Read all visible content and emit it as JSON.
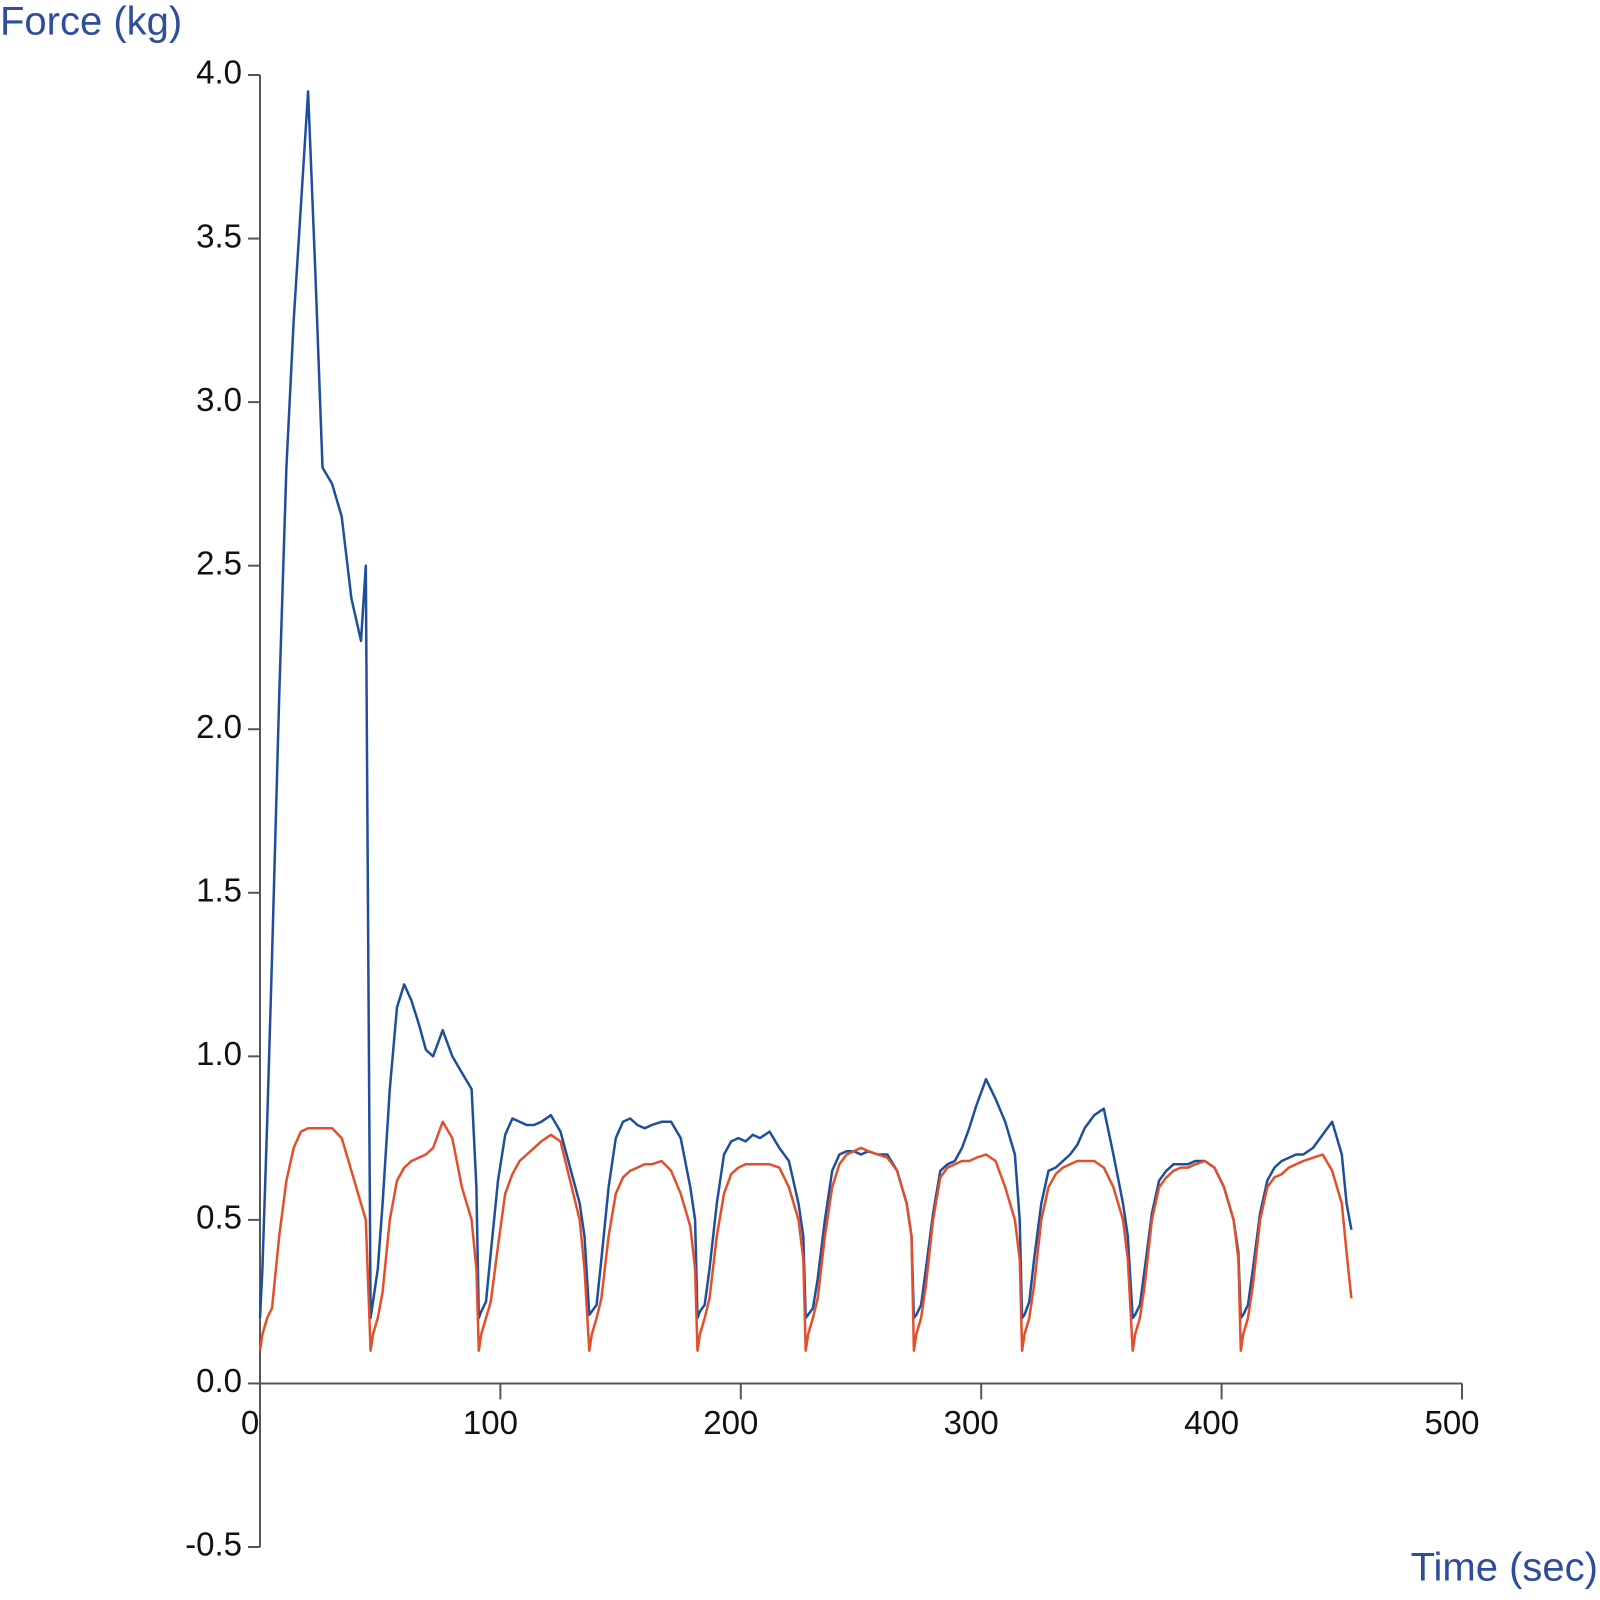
{
  "chart_data": {
    "type": "line",
    "y_label": "Force (kg)",
    "x_label": "Time (sec)",
    "x": [
      0,
      1,
      3,
      5,
      8,
      11,
      14,
      17,
      20,
      23,
      26,
      30,
      34,
      38,
      42,
      44,
      46,
      47,
      49,
      51,
      54,
      57,
      60,
      63,
      66,
      69,
      72,
      76,
      80,
      84,
      88,
      90,
      91,
      92,
      94,
      96,
      99,
      102,
      105,
      108,
      111,
      114,
      117,
      121,
      125,
      129,
      133,
      135,
      137,
      138,
      140,
      142,
      145,
      148,
      151,
      154,
      157,
      160,
      163,
      167,
      171,
      175,
      179,
      181,
      182,
      183,
      185,
      187,
      190,
      193,
      196,
      199,
      202,
      205,
      208,
      212,
      216,
      220,
      224,
      226,
      227,
      228,
      230,
      232,
      235,
      238,
      241,
      244,
      247,
      250,
      253,
      257,
      261,
      265,
      269,
      271,
      272,
      273,
      275,
      277,
      280,
      283,
      286,
      289,
      292,
      295,
      298,
      302,
      306,
      310,
      314,
      316,
      317,
      318,
      320,
      322,
      325,
      328,
      331,
      334,
      337,
      340,
      343,
      347,
      351,
      355,
      359,
      361,
      363,
      364,
      366,
      368,
      371,
      374,
      377,
      380,
      383,
      386,
      389,
      393,
      397,
      401,
      405,
      407,
      408,
      409,
      411,
      413,
      416,
      419,
      422,
      425,
      428,
      431,
      434,
      438,
      442,
      446,
      450,
      452,
      454
    ],
    "series": [
      {
        "color": "#1f4e9c",
        "values": [
          0.2,
          0.35,
          0.8,
          1.3,
          2.1,
          2.8,
          3.25,
          3.6,
          3.95,
          3.4,
          2.8,
          2.75,
          2.65,
          2.4,
          2.27,
          2.5,
          0.2,
          0.25,
          0.35,
          0.55,
          0.9,
          1.15,
          1.22,
          1.17,
          1.1,
          1.02,
          1.0,
          1.08,
          1.0,
          0.95,
          0.9,
          0.6,
          0.2,
          0.22,
          0.25,
          0.4,
          0.62,
          0.76,
          0.81,
          0.8,
          0.79,
          0.79,
          0.8,
          0.82,
          0.77,
          0.66,
          0.55,
          0.45,
          0.21,
          0.22,
          0.24,
          0.38,
          0.6,
          0.75,
          0.8,
          0.81,
          0.79,
          0.78,
          0.79,
          0.8,
          0.8,
          0.75,
          0.6,
          0.5,
          0.2,
          0.22,
          0.24,
          0.35,
          0.55,
          0.7,
          0.74,
          0.75,
          0.74,
          0.76,
          0.75,
          0.77,
          0.72,
          0.68,
          0.55,
          0.45,
          0.2,
          0.21,
          0.23,
          0.32,
          0.5,
          0.65,
          0.7,
          0.71,
          0.71,
          0.7,
          0.71,
          0.7,
          0.7,
          0.65,
          0.55,
          0.45,
          0.2,
          0.21,
          0.24,
          0.35,
          0.52,
          0.65,
          0.67,
          0.68,
          0.72,
          0.78,
          0.85,
          0.93,
          0.87,
          0.8,
          0.7,
          0.5,
          0.2,
          0.21,
          0.25,
          0.38,
          0.55,
          0.65,
          0.66,
          0.68,
          0.7,
          0.73,
          0.78,
          0.82,
          0.84,
          0.7,
          0.55,
          0.45,
          0.2,
          0.21,
          0.24,
          0.35,
          0.52,
          0.62,
          0.65,
          0.67,
          0.67,
          0.67,
          0.68,
          0.68,
          0.66,
          0.6,
          0.5,
          0.4,
          0.2,
          0.21,
          0.24,
          0.35,
          0.52,
          0.62,
          0.66,
          0.68,
          0.69,
          0.7,
          0.7,
          0.72,
          0.76,
          0.8,
          0.7,
          0.55,
          0.47
        ]
      },
      {
        "color": "#e2502b",
        "values": [
          0.1,
          0.15,
          0.2,
          0.23,
          0.45,
          0.62,
          0.72,
          0.77,
          0.78,
          0.78,
          0.78,
          0.78,
          0.75,
          0.65,
          0.55,
          0.5,
          0.1,
          0.15,
          0.2,
          0.28,
          0.5,
          0.62,
          0.66,
          0.68,
          0.69,
          0.7,
          0.72,
          0.8,
          0.75,
          0.6,
          0.5,
          0.35,
          0.1,
          0.15,
          0.2,
          0.25,
          0.42,
          0.58,
          0.64,
          0.68,
          0.7,
          0.72,
          0.74,
          0.76,
          0.74,
          0.62,
          0.5,
          0.35,
          0.1,
          0.15,
          0.2,
          0.26,
          0.45,
          0.58,
          0.63,
          0.65,
          0.66,
          0.67,
          0.67,
          0.68,
          0.65,
          0.58,
          0.48,
          0.35,
          0.1,
          0.15,
          0.2,
          0.26,
          0.45,
          0.58,
          0.64,
          0.66,
          0.67,
          0.67,
          0.67,
          0.67,
          0.66,
          0.6,
          0.5,
          0.38,
          0.1,
          0.15,
          0.2,
          0.26,
          0.45,
          0.6,
          0.67,
          0.7,
          0.71,
          0.72,
          0.71,
          0.7,
          0.69,
          0.65,
          0.55,
          0.45,
          0.1,
          0.15,
          0.2,
          0.3,
          0.5,
          0.63,
          0.66,
          0.67,
          0.68,
          0.68,
          0.69,
          0.7,
          0.68,
          0.6,
          0.5,
          0.38,
          0.1,
          0.15,
          0.2,
          0.3,
          0.5,
          0.6,
          0.64,
          0.66,
          0.67,
          0.68,
          0.68,
          0.68,
          0.66,
          0.6,
          0.5,
          0.38,
          0.1,
          0.15,
          0.2,
          0.3,
          0.5,
          0.6,
          0.63,
          0.65,
          0.66,
          0.66,
          0.67,
          0.68,
          0.66,
          0.6,
          0.5,
          0.38,
          0.1,
          0.15,
          0.2,
          0.3,
          0.5,
          0.6,
          0.63,
          0.64,
          0.66,
          0.67,
          0.68,
          0.69,
          0.7,
          0.65,
          0.55,
          0.4,
          0.26
        ]
      }
    ],
    "xlim": [
      0,
      500
    ],
    "xticks": [
      0,
      100,
      200,
      300,
      400,
      500
    ],
    "ylim": [
      -0.5,
      4.0
    ],
    "yticks": [
      -0.5,
      {
        "value": 0,
        "label": "0.0"
      },
      0.5,
      {
        "value": 1,
        "label": "1.0"
      },
      1.5,
      {
        "value": 2,
        "label": "2.0"
      },
      2.5,
      {
        "value": 3,
        "label": "3.0"
      },
      3.5,
      {
        "value": 4,
        "label": "4.0"
      }
    ],
    "axis_label_color": "#2e4d9d"
  }
}
